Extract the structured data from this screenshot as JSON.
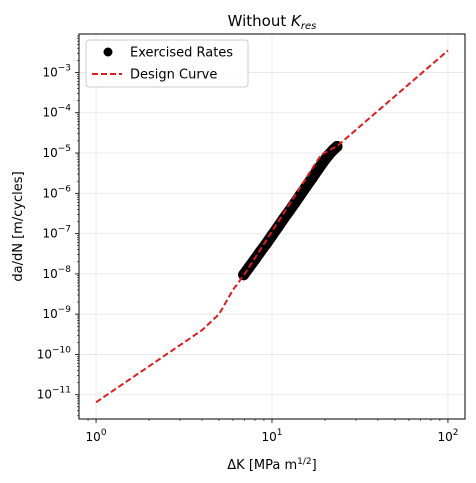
{
  "chart_data": {
    "type": "line",
    "title": {
      "prefix": "Without ",
      "var": "K",
      "sub": "res"
    },
    "xlabel": {
      "prefix": "ΔK [MPa m",
      "sup": "1/2",
      "suffix": "]"
    },
    "ylabel": "da/dN [m/cycles]",
    "xscale": "log",
    "yscale": "log",
    "xlim": [
      0.8,
      125
    ],
    "ylim": [
      2.5e-12,
      0.009
    ],
    "grid": true,
    "legend_position": "top-left",
    "x_ticks": [
      {
        "base": "10",
        "exp": "0"
      },
      {
        "base": "10",
        "exp": "1"
      },
      {
        "base": "10",
        "exp": "2"
      }
    ],
    "y_ticks": [
      {
        "base": "10",
        "exp": "−11"
      },
      {
        "base": "10",
        "exp": "−10"
      },
      {
        "base": "10",
        "exp": "−9"
      },
      {
        "base": "10",
        "exp": "−8"
      },
      {
        "base": "10",
        "exp": "−7"
      },
      {
        "base": "10",
        "exp": "−6"
      },
      {
        "base": "10",
        "exp": "−5"
      },
      {
        "base": "10",
        "exp": "−4"
      },
      {
        "base": "10",
        "exp": "−3"
      }
    ],
    "series": [
      {
        "name": "Exercised Rates",
        "style": "markers",
        "color": "#000000",
        "x": [
          6.9,
          7.4,
          8.0,
          8.6,
          9.3,
          10.0,
          10.8,
          11.6,
          12.5,
          13.5,
          14.5,
          15.6,
          16.8,
          18.1,
          19.5,
          21.0,
          22.3,
          23.4
        ],
        "y": [
          9.5e-09,
          1.45e-08,
          2.3e-08,
          3.6e-08,
          5.7e-08,
          9e-08,
          1.45e-07,
          2.3e-07,
          3.6e-07,
          5.8e-07,
          9.2e-07,
          1.45e-06,
          2.3e-06,
          3.7e-06,
          5.9e-06,
          9e-06,
          1.2e-05,
          1.45e-05
        ]
      },
      {
        "name": "Design Curve",
        "style": "dashed",
        "color": "#e31a1c",
        "x": [
          1.0,
          4.0,
          5.0,
          6.0,
          7.0,
          19.0,
          23.5,
          100.0
        ],
        "y": [
          6.5e-12,
          4e-10,
          1e-09,
          4e-09,
          1e-08,
          9e-06,
          1.5e-05,
          0.0035
        ]
      }
    ]
  }
}
